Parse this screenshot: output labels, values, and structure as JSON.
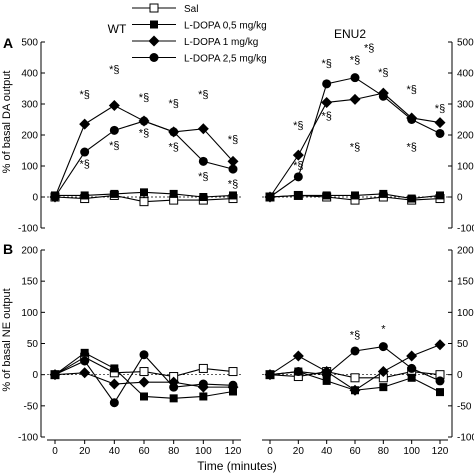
{
  "legend": {
    "entries": [
      {
        "label": "Sal",
        "marker": "square-open"
      },
      {
        "label": "L-DOPA 0,5 mg/kg",
        "marker": "square-filled"
      },
      {
        "label": "L-DOPA 1 mg/kg",
        "marker": "diamond-filled"
      },
      {
        "label": "L-DOPA 2,5 mg/kg",
        "marker": "circle-filled"
      }
    ]
  },
  "group_labels": [
    "WT",
    "ENU2"
  ],
  "panel_letters": [
    "A",
    "B"
  ],
  "xlabel": "Time (minutes)",
  "chart_data": [
    {
      "type": "line",
      "panel": "A",
      "ylabel": "% of basal DA output",
      "ylim": [
        -100,
        500
      ],
      "yticks": [
        -100,
        0,
        100,
        200,
        300,
        400,
        500
      ],
      "x": [
        0,
        20,
        40,
        60,
        80,
        100,
        120
      ],
      "xticks": [
        0,
        20,
        40,
        60,
        80,
        100,
        120
      ],
      "reference_line": 0,
      "groups": [
        {
          "name": "WT",
          "series": [
            {
              "name": "Sal",
              "values": [
                0,
                -5,
                5,
                -15,
                -10,
                -10,
                -5
              ]
            },
            {
              "name": "L-DOPA 0,5 mg/kg",
              "values": [
                5,
                5,
                10,
                15,
                10,
                0,
                5
              ]
            },
            {
              "name": "L-DOPA 1 mg/kg",
              "values": [
                0,
                235,
                295,
                245,
                210,
                220,
                115
              ]
            },
            {
              "name": "L-DOPA 2,5 mg/kg",
              "values": [
                0,
                145,
                215,
                245,
                210,
                115,
                90
              ]
            }
          ],
          "annotations": [
            {
              "x": 20,
              "y": 320,
              "text": "*§"
            },
            {
              "x": 20,
              "y": 95,
              "text": "*§"
            },
            {
              "x": 40,
              "y": 400,
              "text": "*§"
            },
            {
              "x": 40,
              "y": 155,
              "text": "*§"
            },
            {
              "x": 60,
              "y": 310,
              "text": "*§"
            },
            {
              "x": 60,
              "y": 195,
              "text": "*§"
            },
            {
              "x": 80,
              "y": 290,
              "text": "*§"
            },
            {
              "x": 80,
              "y": 150,
              "text": "*§"
            },
            {
              "x": 100,
              "y": 320,
              "text": "*§"
            },
            {
              "x": 100,
              "y": 55,
              "text": "*§"
            },
            {
              "x": 120,
              "y": 175,
              "text": "*§"
            },
            {
              "x": 120,
              "y": 30,
              "text": "*§"
            }
          ]
        },
        {
          "name": "ENU2",
          "series": [
            {
              "name": "Sal",
              "values": [
                0,
                5,
                0,
                -10,
                0,
                -10,
                -5
              ]
            },
            {
              "name": "L-DOPA 0,5 mg/kg",
              "values": [
                0,
                5,
                5,
                5,
                10,
                -5,
                5
              ]
            },
            {
              "name": "L-DOPA 1 mg/kg",
              "values": [
                0,
                135,
                305,
                315,
                335,
                255,
                240
              ]
            },
            {
              "name": "L-DOPA 2,5 mg/kg",
              "values": [
                0,
                65,
                365,
                385,
                325,
                250,
                205
              ]
            }
          ],
          "annotations": [
            {
              "x": 20,
              "y": 220,
              "text": "*§"
            },
            {
              "x": 20,
              "y": 90,
              "text": "*§"
            },
            {
              "x": 40,
              "y": 420,
              "text": "*§"
            },
            {
              "x": 40,
              "y": 250,
              "text": "*§"
            },
            {
              "x": 60,
              "y": 430,
              "text": "*§"
            },
            {
              "x": 60,
              "y": 150,
              "text": "*§"
            },
            {
              "x": 70,
              "y": 470,
              "text": "*§"
            },
            {
              "x": 80,
              "y": 390,
              "text": "*§"
            },
            {
              "x": 100,
              "y": 335,
              "text": "*§"
            },
            {
              "x": 100,
              "y": 150,
              "text": "*§"
            },
            {
              "x": 120,
              "y": 275,
              "text": "*§"
            }
          ]
        }
      ]
    },
    {
      "type": "line",
      "panel": "B",
      "ylabel": "% of basal NE output",
      "ylim": [
        -100,
        200
      ],
      "yticks": [
        -100,
        -50,
        0,
        50,
        100,
        150,
        200
      ],
      "x": [
        0,
        20,
        40,
        60,
        80,
        100,
        120
      ],
      "xticks": [
        0,
        20,
        40,
        60,
        80,
        100,
        120
      ],
      "reference_line": 0,
      "groups": [
        {
          "name": "WT",
          "series": [
            {
              "name": "Sal",
              "values": [
                0,
                28,
                3,
                5,
                -3,
                10,
                5
              ]
            },
            {
              "name": "L-DOPA 0,5 mg/kg",
              "values": [
                0,
                35,
                10,
                -35,
                -38,
                -35,
                -27
              ]
            },
            {
              "name": "L-DOPA 1 mg/kg",
              "values": [
                0,
                3,
                -15,
                -12,
                -12,
                -20,
                -20
              ]
            },
            {
              "name": "L-DOPA 2,5 mg/kg",
              "values": [
                0,
                22,
                -45,
                32,
                -20,
                -15,
                -17
              ]
            }
          ],
          "annotations": []
        },
        {
          "name": "ENU2",
          "series": [
            {
              "name": "Sal",
              "values": [
                0,
                -3,
                5,
                -5,
                -5,
                5,
                0
              ]
            },
            {
              "name": "L-DOPA 0,5 mg/kg",
              "values": [
                0,
                5,
                -10,
                -25,
                -20,
                -5,
                -28
              ]
            },
            {
              "name": "L-DOPA 1 mg/kg",
              "values": [
                0,
                30,
                5,
                -25,
                5,
                30,
                48
              ]
            },
            {
              "name": "L-DOPA 2,5 mg/kg",
              "values": [
                0,
                5,
                0,
                38,
                45,
                10,
                -10
              ]
            }
          ],
          "annotations": [
            {
              "x": 60,
              "y": 58,
              "text": "*§"
            },
            {
              "x": 80,
              "y": 68,
              "text": "*"
            }
          ]
        }
      ]
    }
  ]
}
